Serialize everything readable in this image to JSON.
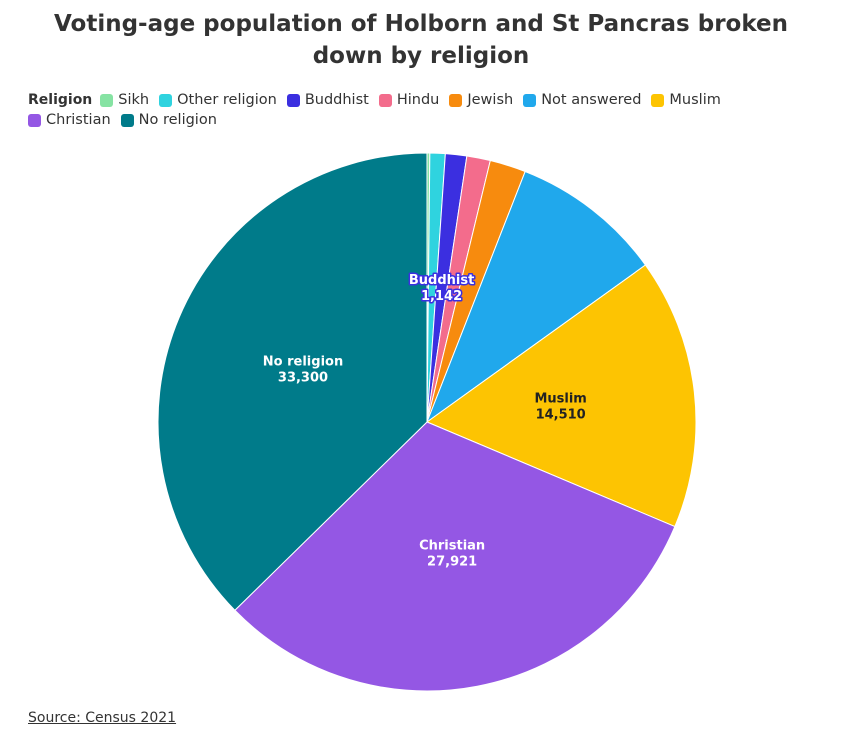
{
  "chart_data": {
    "type": "pie",
    "title": "Voting-age population of Holborn and St Pancras broken down by religion",
    "legend_title": "Religion",
    "categories": [
      "Sikh",
      "Other religion",
      "Buddhist",
      "Hindu",
      "Jewish",
      "Not answered",
      "Muslim",
      "Christian",
      "No religion"
    ],
    "values": [
      150,
      820,
      1142,
      1260,
      1930,
      8150,
      14510,
      27921,
      33300
    ],
    "value_labels": [
      null,
      null,
      "1,142",
      null,
      null,
      null,
      "14,510",
      "27,921",
      "33,300"
    ],
    "colors": [
      "#86e3a3",
      "#2fd3df",
      "#3b2fe0",
      "#f36c8c",
      "#f78b0e",
      "#20a8ec",
      "#fdc402",
      "#9457e4",
      "#007b8a"
    ],
    "source": "Source: Census 2021"
  }
}
